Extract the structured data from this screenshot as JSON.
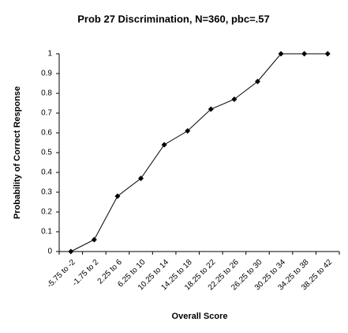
{
  "chart_data": {
    "type": "line",
    "title": "Prob 27 Discrimination, N=360, pbc=.57",
    "x_label": "Overall Score",
    "y_label": "Probability of Correct Response",
    "categories": [
      "-5.75 to -2",
      "-1.75 to 2",
      "2.25 to 6",
      "6.25 to 10",
      "10.25 to 14",
      "14.25 to 18",
      "18.25 to 22",
      "22.25 to 26",
      "26.25 to 30",
      "30.25 to 34",
      "34.25 to 38",
      "38.25 to 42"
    ],
    "values": [
      0,
      0.06,
      0.28,
      0.37,
      0.54,
      0.61,
      0.72,
      0.77,
      0.86,
      1,
      1,
      1
    ],
    "color": "#000000",
    "ylim": [
      0,
      1
    ],
    "yticks": [
      0,
      0.1,
      0.2,
      0.3,
      0.4,
      0.5,
      0.6,
      0.7,
      0.8,
      0.9,
      1
    ],
    "grid": false
  }
}
